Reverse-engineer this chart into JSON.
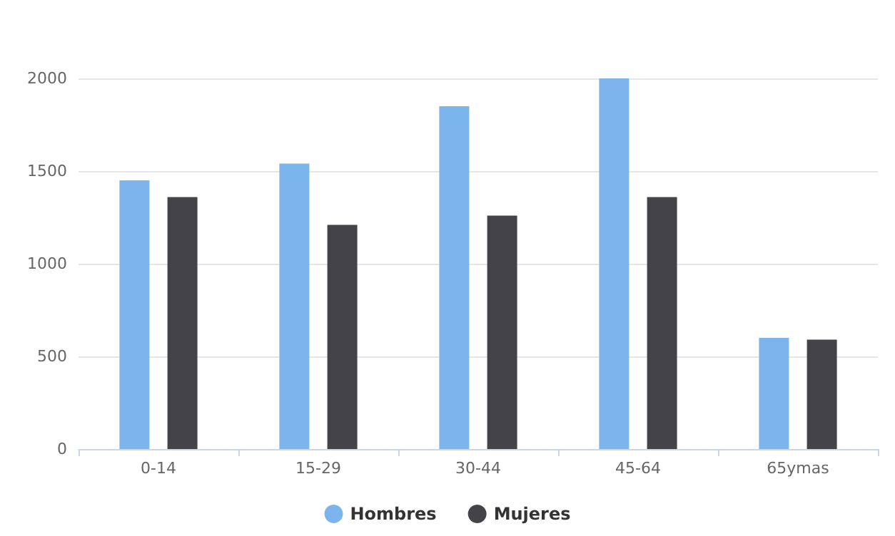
{
  "chart_data": {
    "type": "bar",
    "categories": [
      "0-14",
      "15-29",
      "30-44",
      "45-64",
      "65ymas"
    ],
    "series": [
      {
        "name": "Hombres",
        "color": "#7cb5ec",
        "values": [
          1450,
          1540,
          1850,
          2000,
          600
        ]
      },
      {
        "name": "Mujeres",
        "color": "#434348",
        "values": [
          1360,
          1210,
          1260,
          1360,
          590
        ]
      }
    ],
    "ylim": [
      0,
      2000
    ],
    "yticks": [
      0,
      500,
      1000,
      1500,
      2000
    ],
    "grid": "y",
    "legend": "bottom"
  }
}
